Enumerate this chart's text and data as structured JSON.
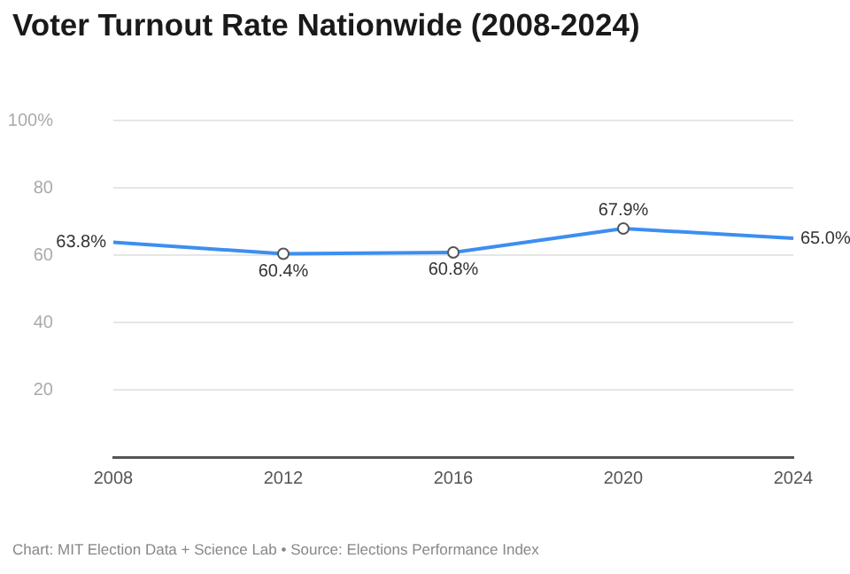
{
  "chart_data": {
    "type": "line",
    "title": "Voter Turnout Rate Nationwide (2008-2024)",
    "annotations": [
      "Chart: MIT Election Data + Science Lab • Source: Elections Performance Index"
    ],
    "categories": [
      "2008",
      "2012",
      "2016",
      "2020",
      "2024"
    ],
    "series": [
      {
        "color": "#3d8ef0",
        "values": [
          63.8,
          60.4,
          60.8,
          67.9,
          65.0
        ],
        "value_labels": [
          "63.8%",
          "60.4%",
          "60.8%",
          "67.9%",
          "65.0%"
        ]
      }
    ],
    "ylim": [
      0,
      100
    ],
    "yticks": [
      {
        "value": 0,
        "label": null
      },
      20,
      40,
      60,
      80,
      {
        "value": 100,
        "label": "100%"
      }
    ],
    "grid": "y",
    "legend": false,
    "marker": "circle",
    "line_style": "solid"
  }
}
